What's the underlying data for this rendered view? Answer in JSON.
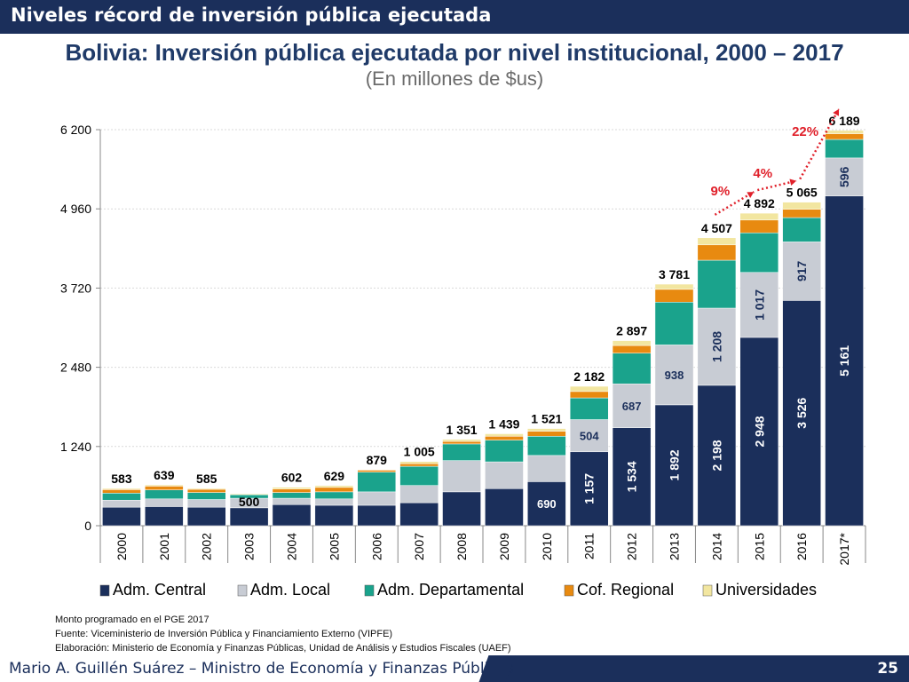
{
  "header": {
    "banner_title": "Niveles récord de inversión pública ejecutada"
  },
  "chart_data": {
    "type": "bar",
    "stacked": true,
    "title": "Bolivia: Inversión pública ejecutada por nivel institucional, 2000 – 2017",
    "subtitle": "(En millones de $us)",
    "categories": [
      "2000",
      "2001",
      "2002",
      "2003",
      "2004",
      "2005",
      "2006",
      "2007",
      "2008",
      "2009",
      "2010",
      "2011",
      "2012",
      "2013",
      "2014",
      "2015",
      "2016",
      "2017*"
    ],
    "ylim": [
      0,
      6200
    ],
    "yticks": [
      0,
      1240,
      2480,
      3720,
      4960,
      6200
    ],
    "ytick_labels": [
      "0",
      "1 240",
      "2 480",
      "3 720",
      "4 960",
      "6 200"
    ],
    "grid": true,
    "legend_position": "bottom",
    "series": [
      {
        "name": "Adm. Central",
        "color": "#1b2f5b",
        "values": [
          290,
          300,
          290,
          280,
          330,
          320,
          320,
          360,
          530,
          580,
          690,
          1157,
          1534,
          1892,
          2198,
          2948,
          3526,
          5161
        ]
      },
      {
        "name": "Adm. Local",
        "color": "#c8ccd4",
        "values": [
          110,
          120,
          120,
          150,
          100,
          100,
          210,
          270,
          490,
          420,
          410,
          504,
          687,
          938,
          1208,
          1017,
          917,
          596
        ]
      },
      {
        "name": "Adm. Departamental",
        "color": "#1aa38c",
        "values": [
          110,
          140,
          110,
          55,
          90,
          110,
          310,
          300,
          260,
          340,
          300,
          340,
          480,
          670,
          750,
          620,
          380,
          290
        ]
      },
      {
        "name": "Cof. Regional",
        "color": "#e88a10",
        "values": [
          55,
          60,
          50,
          0,
          55,
          70,
          30,
          40,
          40,
          60,
          80,
          100,
          120,
          200,
          240,
          200,
          130,
          90
        ]
      },
      {
        "name": "Universidades",
        "color": "#f2e6a0",
        "values": [
          18,
          19,
          15,
          15,
          27,
          29,
          9,
          35,
          31,
          39,
          41,
          81,
          76,
          81,
          111,
          107,
          112,
          52
        ]
      }
    ],
    "totals": [
      583,
      639,
      585,
      500,
      602,
      629,
      879,
      1005,
      1351,
      1439,
      1521,
      2182,
      2897,
      3781,
      4507,
      4892,
      5065,
      6189
    ],
    "total_labels": [
      "583",
      "639",
      "585",
      "500",
      "602",
      "629",
      "879",
      "1 005",
      "1 351",
      "1 439",
      "1 521",
      "2 182",
      "2 897",
      "3 781",
      "4 507",
      "4 892",
      "5 065",
      "6 189"
    ],
    "segment_labels": [
      {
        "category": "2010",
        "series": "Adm. Central",
        "text": "690"
      },
      {
        "category": "2011",
        "series": "Adm. Central",
        "text": "1 157"
      },
      {
        "category": "2011",
        "series": "Adm. Local",
        "text": "504"
      },
      {
        "category": "2012",
        "series": "Adm. Central",
        "text": "1 534"
      },
      {
        "category": "2012",
        "series": "Adm. Local",
        "text": "687"
      },
      {
        "category": "2013",
        "series": "Adm. Central",
        "text": "1 892"
      },
      {
        "category": "2013",
        "series": "Adm. Local",
        "text": "938"
      },
      {
        "category": "2014",
        "series": "Adm. Central",
        "text": "2 198"
      },
      {
        "category": "2014",
        "series": "Adm. Local",
        "text": "1 208"
      },
      {
        "category": "2015",
        "series": "Adm. Central",
        "text": "2 948"
      },
      {
        "category": "2015",
        "series": "Adm. Local",
        "text": "1 017"
      },
      {
        "category": "2016",
        "series": "Adm. Central",
        "text": "3 526"
      },
      {
        "category": "2016",
        "series": "Adm. Local",
        "text": "917"
      },
      {
        "category": "2017*",
        "series": "Adm. Central",
        "text": "5 161"
      },
      {
        "category": "2017*",
        "series": "Adm. Local",
        "text": "596"
      }
    ],
    "annotations": [
      {
        "from": "2014",
        "to": "2015",
        "text": "9%",
        "color": "#e0202a"
      },
      {
        "from": "2015",
        "to": "2016",
        "text": "4%",
        "color": "#e0202a"
      },
      {
        "from": "2016",
        "to": "2017*",
        "text": "22%",
        "color": "#e0202a"
      }
    ]
  },
  "notes": [
    "Monto programado en el PGE 2017",
    "Fuente: Viceministerio de Inversión Pública y Financiamiento Externo (VIPFE)",
    "Elaboración: Ministerio de Economía y Finanzas Públicas, Unidad de Análisis y Estudios Fiscales (UAEF)"
  ],
  "footer": {
    "author": "Mario A. Guillén Suárez – Ministro de Economía y Finanzas Públicas",
    "page": "25"
  }
}
